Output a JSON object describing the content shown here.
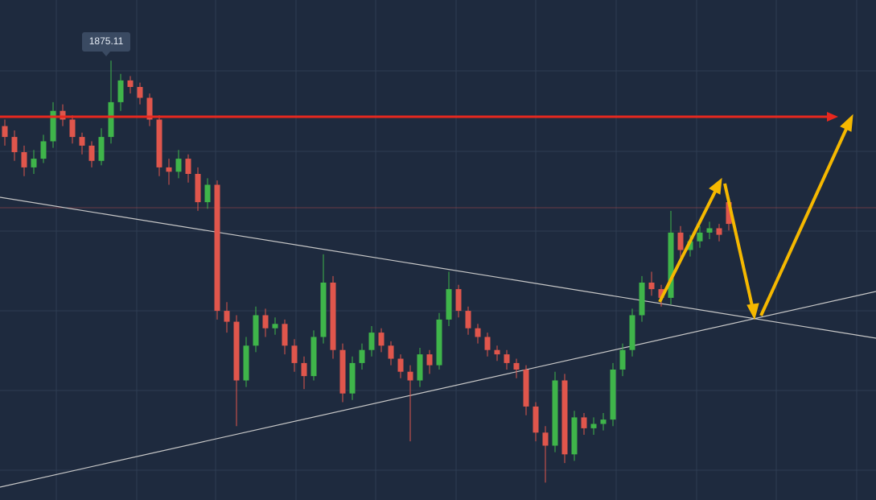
{
  "chart_data": {
    "type": "candlestick",
    "ylim": [
      1673,
      1903
    ],
    "up_color": "#3fb54a",
    "down_color": "#e0564c",
    "ohlc": [
      [
        1845,
        1848,
        1836,
        1840
      ],
      [
        1840,
        1843,
        1829,
        1833
      ],
      [
        1833,
        1836,
        1822,
        1826
      ],
      [
        1826,
        1834,
        1823,
        1830
      ],
      [
        1830,
        1841,
        1828,
        1838
      ],
      [
        1838,
        1856,
        1835,
        1852
      ],
      [
        1852,
        1855,
        1845,
        1848
      ],
      [
        1848,
        1850,
        1837,
        1840
      ],
      [
        1840,
        1842,
        1832,
        1836
      ],
      [
        1836,
        1838,
        1826,
        1829
      ],
      [
        1829,
        1844,
        1827,
        1840
      ],
      [
        1840,
        1875.11,
        1837,
        1856
      ],
      [
        1856,
        1869,
        1852,
        1866
      ],
      [
        1866,
        1868,
        1860,
        1863
      ],
      [
        1863,
        1865,
        1855,
        1858
      ],
      [
        1858,
        1860,
        1845,
        1848
      ],
      [
        1848,
        1850,
        1822,
        1826
      ],
      [
        1826,
        1830,
        1818,
        1824
      ],
      [
        1824,
        1834,
        1821,
        1830
      ],
      [
        1830,
        1832,
        1819,
        1823
      ],
      [
        1823,
        1826,
        1806,
        1810
      ],
      [
        1810,
        1821,
        1807,
        1818
      ],
      [
        1818,
        1820,
        1756,
        1760
      ],
      [
        1760,
        1764,
        1750,
        1755
      ],
      [
        1755,
        1758,
        1707,
        1728
      ],
      [
        1728,
        1748,
        1725,
        1744
      ],
      [
        1744,
        1762,
        1741,
        1758
      ],
      [
        1758,
        1761,
        1748,
        1752
      ],
      [
        1752,
        1757,
        1749,
        1754
      ],
      [
        1754,
        1756,
        1740,
        1744
      ],
      [
        1744,
        1747,
        1732,
        1736
      ],
      [
        1736,
        1739,
        1724,
        1730
      ],
      [
        1730,
        1751,
        1728,
        1748
      ],
      [
        1748,
        1786,
        1745,
        1773
      ],
      [
        1773,
        1776,
        1738,
        1742
      ],
      [
        1742,
        1745,
        1718,
        1722
      ],
      [
        1722,
        1739,
        1719,
        1736
      ],
      [
        1736,
        1745,
        1733,
        1742
      ],
      [
        1742,
        1753,
        1739,
        1750
      ],
      [
        1750,
        1752,
        1741,
        1744
      ],
      [
        1744,
        1746,
        1735,
        1738
      ],
      [
        1738,
        1740,
        1729,
        1732
      ],
      [
        1732,
        1735,
        1700,
        1728
      ],
      [
        1728,
        1743,
        1725,
        1740
      ],
      [
        1740,
        1742,
        1731,
        1735
      ],
      [
        1735,
        1759,
        1733,
        1756
      ],
      [
        1756,
        1778,
        1753,
        1770
      ],
      [
        1770,
        1772,
        1757,
        1760
      ],
      [
        1760,
        1762,
        1749,
        1752
      ],
      [
        1752,
        1754,
        1745,
        1748
      ],
      [
        1748,
        1750,
        1739,
        1742
      ],
      [
        1742,
        1744,
        1737,
        1740
      ],
      [
        1740,
        1742,
        1733,
        1736
      ],
      [
        1736,
        1738,
        1729,
        1733
      ],
      [
        1733,
        1735,
        1712,
        1716
      ],
      [
        1716,
        1718,
        1700,
        1704
      ],
      [
        1704,
        1707,
        1681,
        1698
      ],
      [
        1698,
        1732,
        1695,
        1728
      ],
      [
        1728,
        1731,
        1690,
        1694
      ],
      [
        1694,
        1714,
        1691,
        1711
      ],
      [
        1711,
        1713,
        1703,
        1706
      ],
      [
        1706,
        1711,
        1703,
        1708
      ],
      [
        1708,
        1713,
        1705,
        1710
      ],
      [
        1710,
        1736,
        1707,
        1733
      ],
      [
        1733,
        1745,
        1730,
        1742
      ],
      [
        1742,
        1761,
        1739,
        1758
      ],
      [
        1758,
        1776,
        1755,
        1773
      ],
      [
        1773,
        1778,
        1767,
        1770
      ],
      [
        1770,
        1772,
        1762,
        1766
      ],
      [
        1766,
        1806,
        1763,
        1796
      ],
      [
        1796,
        1799,
        1784,
        1788
      ],
      [
        1788,
        1795,
        1785,
        1792
      ],
      [
        1792,
        1799,
        1789,
        1796
      ],
      [
        1796,
        1801,
        1793,
        1798
      ],
      [
        1798,
        1800,
        1792,
        1795
      ],
      [
        1810,
        1812,
        1797,
        1800
      ]
    ]
  }
}
